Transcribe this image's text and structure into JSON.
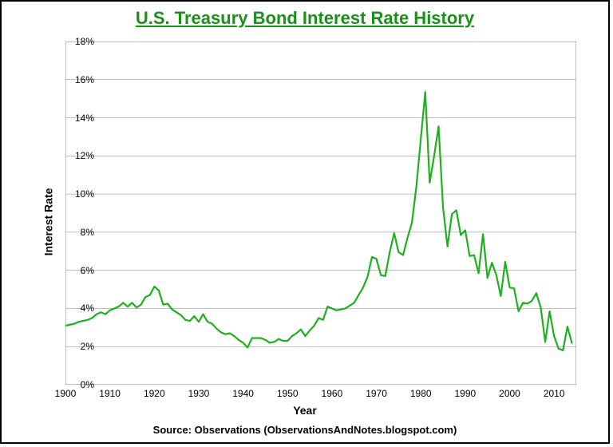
{
  "chart": {
    "type": "line",
    "title": "U.S. Treasury Bond Interest Rate History",
    "title_color": "#1a8f1a",
    "title_fontsize": 22,
    "title_underline": true,
    "xlabel": "Year",
    "ylabel": "Interest Rate",
    "label_fontsize": 14,
    "source": "Source: Observations   (ObservationsAndNotes.blogspot.com)",
    "source_fontsize": 13,
    "background_color": "#ffffff",
    "border_color": "#000000",
    "frame_border_width": 2,
    "xlim": [
      1900,
      2015
    ],
    "ylim": [
      0,
      18
    ],
    "xtick_step": 10,
    "ytick_step": 2,
    "xticks": [
      1900,
      1910,
      1920,
      1930,
      1940,
      1950,
      1960,
      1970,
      1980,
      1990,
      2000,
      2010
    ],
    "yticks": [
      0,
      2,
      4,
      6,
      8,
      10,
      12,
      14,
      16,
      18
    ],
    "ytick_suffix": "%",
    "grid_color": "#808080",
    "grid_width": 0.5,
    "axis_color": "#808080",
    "axis_width": 1,
    "tick_mark_length": 5,
    "line_color": "#1eb01e",
    "line_width": 2.2,
    "series": {
      "x": [
        1900,
        1901,
        1902,
        1903,
        1904,
        1905,
        1906,
        1907,
        1908,
        1909,
        1910,
        1911,
        1912,
        1913,
        1914,
        1915,
        1916,
        1917,
        1918,
        1919,
        1920,
        1921,
        1922,
        1923,
        1924,
        1925,
        1926,
        1927,
        1928,
        1929,
        1930,
        1931,
        1932,
        1933,
        1934,
        1935,
        1936,
        1937,
        1938,
        1939,
        1940,
        1941,
        1942,
        1943,
        1944,
        1945,
        1946,
        1947,
        1948,
        1949,
        1950,
        1951,
        1952,
        1953,
        1954,
        1955,
        1956,
        1957,
        1958,
        1959,
        1960,
        1961,
        1962,
        1963,
        1964,
        1965,
        1966,
        1967,
        1968,
        1969,
        1970,
        1971,
        1972,
        1973,
        1974,
        1975,
        1976,
        1977,
        1978,
        1979,
        1980,
        1981,
        1982,
        1983,
        1984,
        1985,
        1986,
        1987,
        1988,
        1989,
        1990,
        1991,
        1992,
        1993,
        1994,
        1995,
        1996,
        1997,
        1998,
        1999,
        2000,
        2001,
        2002,
        2003,
        2004,
        2005,
        2006,
        2007,
        2008,
        2009,
        2010,
        2011,
        2012,
        2013,
        2014
      ],
      "y": [
        3.1,
        3.15,
        3.2,
        3.3,
        3.35,
        3.4,
        3.5,
        3.7,
        3.8,
        3.7,
        3.9,
        4.0,
        4.1,
        4.3,
        4.1,
        4.3,
        4.05,
        4.2,
        4.6,
        4.7,
        5.15,
        4.95,
        4.2,
        4.25,
        3.95,
        3.8,
        3.65,
        3.4,
        3.35,
        3.6,
        3.3,
        3.7,
        3.3,
        3.2,
        2.95,
        2.75,
        2.65,
        2.7,
        2.55,
        2.35,
        2.2,
        1.95,
        2.45,
        2.45,
        2.45,
        2.35,
        2.2,
        2.25,
        2.4,
        2.3,
        2.3,
        2.55,
        2.7,
        2.9,
        2.55,
        2.85,
        3.1,
        3.5,
        3.4,
        4.1,
        4.0,
        3.9,
        3.95,
        4.0,
        4.15,
        4.3,
        4.7,
        5.1,
        5.65,
        6.7,
        6.6,
        5.75,
        5.7,
        6.95,
        7.95,
        6.95,
        6.8,
        7.7,
        8.5,
        10.4,
        12.9,
        15.35,
        10.6,
        12.0,
        13.55,
        9.3,
        7.25,
        8.95,
        9.15,
        7.85,
        8.1,
        6.75,
        6.8,
        5.85,
        7.9,
        5.6,
        6.4,
        5.75,
        4.65,
        6.45,
        5.1,
        5.05,
        3.85,
        4.3,
        4.25,
        4.4,
        4.8,
        4.05,
        2.25,
        3.85,
        2.55,
        1.9,
        1.8,
        3.05,
        2.2
      ]
    }
  }
}
